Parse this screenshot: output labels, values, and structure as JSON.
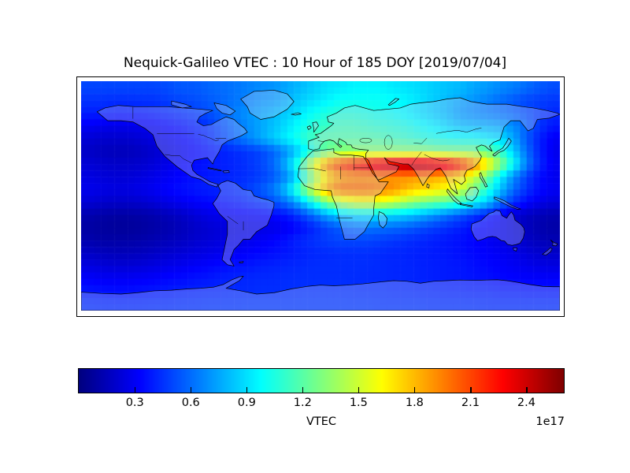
{
  "title": "Nequick-Galileo VTEC : 10 Hour of 185 DOY [2019/07/04]",
  "colorbar": {
    "label": "VTEC",
    "offset_label": "1e17",
    "ticks": [
      0.3,
      0.6,
      0.9,
      1.2,
      1.5,
      1.8,
      2.1,
      2.4
    ],
    "vmin": 0.0,
    "vmax": 2.6,
    "colormap": "jet"
  },
  "chart_data": {
    "type": "heatmap",
    "title": "Nequick-Galileo VTEC : 10 Hour of 185 DOY [2019/07/04]",
    "colormap": "jet",
    "units_scale": "1e17",
    "value_label": "VTEC",
    "vmin": 0.0,
    "vmax": 2.6,
    "lon_range": [
      -180,
      180
    ],
    "lat_range": [
      -90,
      90
    ],
    "lon_step": 10,
    "lat_step": 10,
    "grid_note": "rows from lat 85N down to 85S, cols from lon 175W to 175E, values in 1e17",
    "grid": [
      [
        0.5,
        0.5,
        0.5,
        0.5,
        0.5,
        0.5,
        0.52,
        0.55,
        0.55,
        0.58,
        0.6,
        0.62,
        0.65,
        0.68,
        0.7,
        0.75,
        0.8,
        0.85,
        0.9,
        0.92,
        0.95,
        0.95,
        0.95,
        0.92,
        0.9,
        0.88,
        0.85,
        0.82,
        0.8,
        0.75,
        0.72,
        0.68,
        0.65,
        0.6,
        0.55,
        0.52
      ],
      [
        0.45,
        0.45,
        0.44,
        0.44,
        0.45,
        0.45,
        0.48,
        0.5,
        0.52,
        0.55,
        0.58,
        0.62,
        0.65,
        0.7,
        0.72,
        0.78,
        0.85,
        0.9,
        0.95,
        1.0,
        1.0,
        1.0,
        1.0,
        0.98,
        0.95,
        0.9,
        0.85,
        0.8,
        0.75,
        0.7,
        0.65,
        0.6,
        0.55,
        0.5,
        0.48,
        0.46
      ],
      [
        0.4,
        0.4,
        0.38,
        0.38,
        0.38,
        0.4,
        0.42,
        0.45,
        0.48,
        0.52,
        0.58,
        0.65,
        0.7,
        0.75,
        0.8,
        0.85,
        0.92,
        1.0,
        1.05,
        1.08,
        1.08,
        1.05,
        1.02,
        1.0,
        0.95,
        0.9,
        0.85,
        0.8,
        0.72,
        0.68,
        0.65,
        0.62,
        0.58,
        0.52,
        0.46,
        0.42
      ],
      [
        0.3,
        0.28,
        0.27,
        0.27,
        0.28,
        0.3,
        0.33,
        0.36,
        0.4,
        0.45,
        0.52,
        0.6,
        0.68,
        0.75,
        0.82,
        0.9,
        1.0,
        1.08,
        1.12,
        1.15,
        1.15,
        1.12,
        1.1,
        1.08,
        1.05,
        1.0,
        0.95,
        0.88,
        0.82,
        0.8,
        0.78,
        0.75,
        0.68,
        0.58,
        0.45,
        0.38
      ],
      [
        0.22,
        0.2,
        0.2,
        0.2,
        0.22,
        0.25,
        0.28,
        0.32,
        0.36,
        0.42,
        0.5,
        0.58,
        0.66,
        0.75,
        0.85,
        0.95,
        1.05,
        1.15,
        1.2,
        1.2,
        1.2,
        1.2,
        1.18,
        1.15,
        1.12,
        1.08,
        1.05,
        1.02,
        1.0,
        1.0,
        0.95,
        0.9,
        0.75,
        0.55,
        0.4,
        0.3
      ],
      [
        0.18,
        0.16,
        0.15,
        0.15,
        0.17,
        0.2,
        0.24,
        0.28,
        0.32,
        0.36,
        0.4,
        0.43,
        0.46,
        0.5,
        0.58,
        0.7,
        0.88,
        1.08,
        1.25,
        1.32,
        1.35,
        1.35,
        1.35,
        1.35,
        1.35,
        1.35,
        1.32,
        1.3,
        1.3,
        1.3,
        1.25,
        1.1,
        0.85,
        0.6,
        0.4,
        0.28
      ],
      [
        0.22,
        0.2,
        0.19,
        0.19,
        0.2,
        0.23,
        0.27,
        0.31,
        0.35,
        0.38,
        0.4,
        0.42,
        0.45,
        0.5,
        0.6,
        0.8,
        1.15,
        1.6,
        1.95,
        2.15,
        2.25,
        2.35,
        2.45,
        2.5,
        2.55,
        2.55,
        2.5,
        2.4,
        2.25,
        2.0,
        1.7,
        1.35,
        1.0,
        0.65,
        0.42,
        0.3
      ],
      [
        0.25,
        0.23,
        0.22,
        0.22,
        0.24,
        0.27,
        0.3,
        0.33,
        0.36,
        0.38,
        0.4,
        0.42,
        0.44,
        0.48,
        0.55,
        0.68,
        0.95,
        1.35,
        1.7,
        1.85,
        1.9,
        1.9,
        1.9,
        1.9,
        1.9,
        1.88,
        1.85,
        1.8,
        1.7,
        1.5,
        1.25,
        0.95,
        0.68,
        0.48,
        0.35,
        0.28
      ],
      [
        0.28,
        0.26,
        0.25,
        0.25,
        0.27,
        0.3,
        0.33,
        0.36,
        0.38,
        0.4,
        0.42,
        0.44,
        0.48,
        0.55,
        0.65,
        0.85,
        1.2,
        1.55,
        1.85,
        2.0,
        2.0,
        2.0,
        1.95,
        1.9,
        1.8,
        1.72,
        1.68,
        1.6,
        1.5,
        1.3,
        1.08,
        0.82,
        0.6,
        0.45,
        0.35,
        0.3
      ],
      [
        0.22,
        0.2,
        0.19,
        0.19,
        0.2,
        0.23,
        0.26,
        0.29,
        0.32,
        0.34,
        0.36,
        0.38,
        0.42,
        0.46,
        0.52,
        0.62,
        0.8,
        1.05,
        1.3,
        1.45,
        1.55,
        1.58,
        1.55,
        1.48,
        1.38,
        1.3,
        1.25,
        1.2,
        1.12,
        0.98,
        0.85,
        0.62,
        0.45,
        0.34,
        0.27,
        0.23
      ],
      [
        0.12,
        0.1,
        0.09,
        0.09,
        0.1,
        0.12,
        0.15,
        0.18,
        0.22,
        0.26,
        0.28,
        0.3,
        0.31,
        0.32,
        0.34,
        0.38,
        0.48,
        0.6,
        0.75,
        0.85,
        0.9,
        0.92,
        0.9,
        0.88,
        0.84,
        0.78,
        0.7,
        0.62,
        0.54,
        0.46,
        0.38,
        0.3,
        0.22,
        0.17,
        0.14,
        0.12
      ],
      [
        0.09,
        0.08,
        0.07,
        0.07,
        0.08,
        0.1,
        0.12,
        0.15,
        0.18,
        0.21,
        0.23,
        0.24,
        0.25,
        0.26,
        0.27,
        0.3,
        0.35,
        0.42,
        0.5,
        0.56,
        0.6,
        0.62,
        0.61,
        0.59,
        0.56,
        0.52,
        0.48,
        0.44,
        0.4,
        0.35,
        0.31,
        0.27,
        0.22,
        0.16,
        0.12,
        0.1
      ],
      [
        0.12,
        0.1,
        0.1,
        0.1,
        0.11,
        0.13,
        0.15,
        0.17,
        0.2,
        0.22,
        0.24,
        0.26,
        0.28,
        0.3,
        0.33,
        0.37,
        0.42,
        0.45,
        0.48,
        0.5,
        0.5,
        0.5,
        0.48,
        0.46,
        0.44,
        0.42,
        0.4,
        0.38,
        0.36,
        0.33,
        0.3,
        0.27,
        0.23,
        0.18,
        0.15,
        0.13
      ],
      [
        0.18,
        0.16,
        0.15,
        0.15,
        0.16,
        0.18,
        0.2,
        0.22,
        0.24,
        0.26,
        0.28,
        0.3,
        0.32,
        0.34,
        0.36,
        0.38,
        0.4,
        0.42,
        0.43,
        0.44,
        0.44,
        0.44,
        0.43,
        0.42,
        0.41,
        0.4,
        0.39,
        0.38,
        0.36,
        0.34,
        0.32,
        0.3,
        0.27,
        0.23,
        0.2,
        0.19
      ],
      [
        0.25,
        0.23,
        0.22,
        0.22,
        0.23,
        0.25,
        0.27,
        0.29,
        0.31,
        0.33,
        0.35,
        0.37,
        0.38,
        0.4,
        0.41,
        0.42,
        0.43,
        0.44,
        0.44,
        0.44,
        0.44,
        0.44,
        0.43,
        0.42,
        0.42,
        0.41,
        0.4,
        0.39,
        0.38,
        0.36,
        0.34,
        0.32,
        0.3,
        0.28,
        0.26,
        0.25
      ],
      [
        0.32,
        0.3,
        0.3,
        0.3,
        0.31,
        0.32,
        0.34,
        0.35,
        0.37,
        0.38,
        0.4,
        0.41,
        0.42,
        0.43,
        0.43,
        0.44,
        0.44,
        0.44,
        0.44,
        0.44,
        0.44,
        0.43,
        0.43,
        0.42,
        0.42,
        0.41,
        0.4,
        0.39,
        0.38,
        0.37,
        0.36,
        0.34,
        0.33,
        0.32,
        0.32,
        0.32
      ],
      [
        0.38,
        0.37,
        0.36,
        0.36,
        0.37,
        0.38,
        0.39,
        0.4,
        0.41,
        0.42,
        0.42,
        0.43,
        0.43,
        0.44,
        0.44,
        0.44,
        0.45,
        0.45,
        0.45,
        0.45,
        0.44,
        0.44,
        0.44,
        0.43,
        0.43,
        0.42,
        0.42,
        0.41,
        0.41,
        0.4,
        0.4,
        0.39,
        0.39,
        0.38,
        0.38,
        0.38
      ],
      [
        0.44,
        0.43,
        0.43,
        0.43,
        0.43,
        0.44,
        0.44,
        0.45,
        0.45,
        0.46,
        0.46,
        0.46,
        0.47,
        0.47,
        0.47,
        0.47,
        0.47,
        0.47,
        0.47,
        0.47,
        0.47,
        0.47,
        0.46,
        0.46,
        0.46,
        0.46,
        0.45,
        0.45,
        0.45,
        0.45,
        0.44,
        0.44,
        0.44,
        0.44,
        0.44,
        0.44
      ]
    ]
  }
}
